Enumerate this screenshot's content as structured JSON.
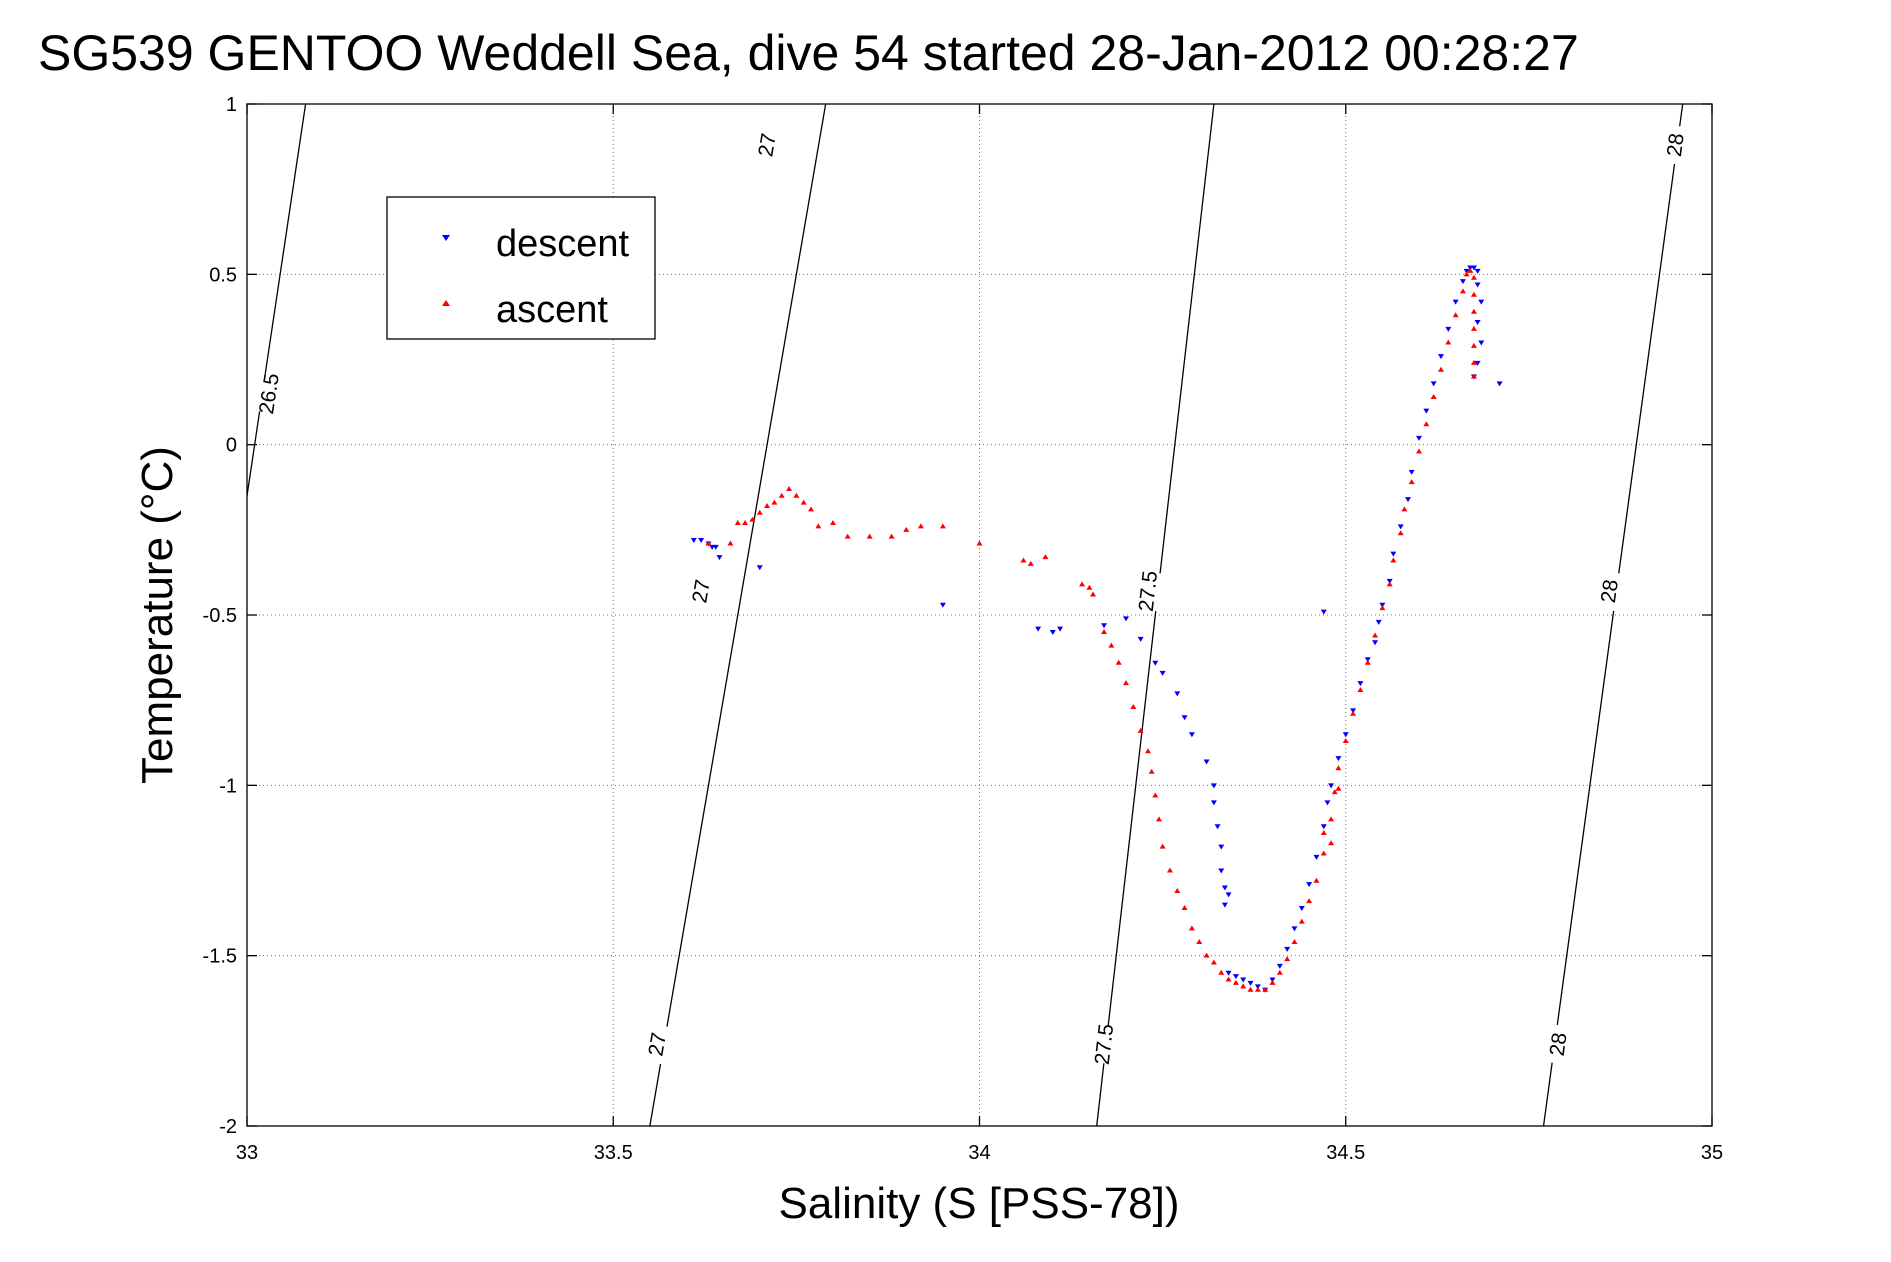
{
  "chart_data": {
    "type": "scatter",
    "title": "SG539 GENTOO Weddell Sea, dive 54 started 28-Jan-2012 00:28:27",
    "xlabel": "Salinity (S [PSS-78])",
    "ylabel": "Temperature (°C)",
    "xlim": [
      33,
      35
    ],
    "ylim": [
      -2,
      1
    ],
    "x_ticks": [
      "33",
      "33.5",
      "34",
      "34.5",
      "35"
    ],
    "y_ticks": [
      "1",
      "0.5",
      "0",
      "-0.5",
      "-1",
      "-1.5",
      "-2"
    ],
    "grid": true,
    "legend_position": "top-left",
    "colors": {
      "descent": "#0000ff",
      "ascent": "#ff0000",
      "contour": "#000000"
    },
    "density_contours": [
      {
        "level": "26.5",
        "points": [
          [
            33.0,
            -0.15
          ],
          [
            33.08,
            1.0
          ]
        ]
      },
      {
        "level": "27",
        "points": [
          [
            33.55,
            -2.0
          ],
          [
            33.79,
            1.0
          ]
        ]
      },
      {
        "level": "27.5",
        "points": [
          [
            34.16,
            -2.0
          ],
          [
            34.32,
            1.0
          ]
        ]
      },
      {
        "level": "28",
        "points": [
          [
            34.77,
            -2.0
          ],
          [
            34.96,
            1.0
          ]
        ]
      }
    ],
    "contour_labels": [
      {
        "text": "26.5",
        "x": 33.03,
        "y": 0.15
      },
      {
        "text": "27",
        "x": 33.71,
        "y": 0.88
      },
      {
        "text": "27",
        "x": 33.62,
        "y": -0.43
      },
      {
        "text": "27",
        "x": 33.56,
        "y": -1.76
      },
      {
        "text": "27.5",
        "x": 34.23,
        "y": -0.43
      },
      {
        "text": "27.5",
        "x": 34.17,
        "y": -1.76
      },
      {
        "text": "28",
        "x": 34.95,
        "y": 0.88
      },
      {
        "text": "28",
        "x": 34.86,
        "y": -0.43
      },
      {
        "text": "28",
        "x": 34.79,
        "y": -1.76
      }
    ],
    "series": [
      {
        "name": "descent",
        "marker": "triangle-down",
        "points": [
          [
            33.61,
            -0.28
          ],
          [
            33.62,
            -0.28
          ],
          [
            33.63,
            -0.29
          ],
          [
            33.635,
            -0.3
          ],
          [
            33.645,
            -0.33
          ],
          [
            33.64,
            -0.3
          ],
          [
            33.7,
            -0.36
          ],
          [
            33.95,
            -0.47
          ],
          [
            34.08,
            -0.54
          ],
          [
            34.1,
            -0.55
          ],
          [
            34.11,
            -0.54
          ],
          [
            34.17,
            -0.53
          ],
          [
            34.2,
            -0.51
          ],
          [
            34.22,
            -0.57
          ],
          [
            34.24,
            -0.64
          ],
          [
            34.25,
            -0.67
          ],
          [
            34.27,
            -0.73
          ],
          [
            34.28,
            -0.8
          ],
          [
            34.29,
            -0.85
          ],
          [
            34.31,
            -0.93
          ],
          [
            34.32,
            -1.0
          ],
          [
            34.32,
            -1.05
          ],
          [
            34.325,
            -1.12
          ],
          [
            34.33,
            -1.18
          ],
          [
            34.33,
            -1.25
          ],
          [
            34.335,
            -1.3
          ],
          [
            34.34,
            -1.32
          ],
          [
            34.335,
            -1.35
          ],
          [
            34.34,
            -1.55
          ],
          [
            34.35,
            -1.56
          ],
          [
            34.36,
            -1.57
          ],
          [
            34.37,
            -1.58
          ],
          [
            34.38,
            -1.59
          ],
          [
            34.39,
            -1.6
          ],
          [
            34.4,
            -1.57
          ],
          [
            34.41,
            -1.53
          ],
          [
            34.42,
            -1.48
          ],
          [
            34.43,
            -1.42
          ],
          [
            34.44,
            -1.36
          ],
          [
            34.45,
            -1.29
          ],
          [
            34.46,
            -1.21
          ],
          [
            34.47,
            -1.12
          ],
          [
            34.475,
            -1.05
          ],
          [
            34.48,
            -1.0
          ],
          [
            34.49,
            -0.92
          ],
          [
            34.5,
            -0.85
          ],
          [
            34.51,
            -0.78
          ],
          [
            34.52,
            -0.7
          ],
          [
            34.53,
            -0.63
          ],
          [
            34.54,
            -0.58
          ],
          [
            34.545,
            -0.52
          ],
          [
            34.55,
            -0.47
          ],
          [
            34.56,
            -0.4
          ],
          [
            34.565,
            -0.32
          ],
          [
            34.575,
            -0.24
          ],
          [
            34.585,
            -0.16
          ],
          [
            34.59,
            -0.08
          ],
          [
            34.6,
            0.02
          ],
          [
            34.61,
            0.1
          ],
          [
            34.62,
            0.18
          ],
          [
            34.63,
            0.26
          ],
          [
            34.64,
            0.34
          ],
          [
            34.65,
            0.42
          ],
          [
            34.66,
            0.48
          ],
          [
            34.665,
            0.51
          ],
          [
            34.67,
            0.52
          ],
          [
            34.675,
            0.52
          ],
          [
            34.68,
            0.51
          ],
          [
            34.68,
            0.47
          ],
          [
            34.685,
            0.42
          ],
          [
            34.68,
            0.36
          ],
          [
            34.685,
            0.3
          ],
          [
            34.68,
            0.24
          ],
          [
            34.675,
            0.2
          ],
          [
            34.47,
            -0.49
          ],
          [
            34.71,
            0.18
          ]
        ]
      },
      {
        "name": "ascent",
        "marker": "triangle-up",
        "points": [
          [
            33.63,
            -0.29
          ],
          [
            33.66,
            -0.29
          ],
          [
            33.67,
            -0.23
          ],
          [
            33.68,
            -0.23
          ],
          [
            33.69,
            -0.22
          ],
          [
            33.7,
            -0.2
          ],
          [
            33.71,
            -0.18
          ],
          [
            33.72,
            -0.17
          ],
          [
            33.73,
            -0.15
          ],
          [
            33.74,
            -0.13
          ],
          [
            33.75,
            -0.15
          ],
          [
            33.76,
            -0.17
          ],
          [
            33.77,
            -0.19
          ],
          [
            33.78,
            -0.24
          ],
          [
            33.8,
            -0.23
          ],
          [
            33.82,
            -0.27
          ],
          [
            33.85,
            -0.27
          ],
          [
            33.88,
            -0.27
          ],
          [
            33.9,
            -0.25
          ],
          [
            33.92,
            -0.24
          ],
          [
            33.95,
            -0.24
          ],
          [
            34.0,
            -0.29
          ],
          [
            34.06,
            -0.34
          ],
          [
            34.07,
            -0.35
          ],
          [
            34.09,
            -0.33
          ],
          [
            34.14,
            -0.41
          ],
          [
            34.15,
            -0.42
          ],
          [
            34.155,
            -0.44
          ],
          [
            34.17,
            -0.55
          ],
          [
            34.18,
            -0.59
          ],
          [
            34.19,
            -0.64
          ],
          [
            34.2,
            -0.7
          ],
          [
            34.21,
            -0.77
          ],
          [
            34.22,
            -0.84
          ],
          [
            34.23,
            -0.9
          ],
          [
            34.235,
            -0.96
          ],
          [
            34.24,
            -1.03
          ],
          [
            34.245,
            -1.1
          ],
          [
            34.25,
            -1.18
          ],
          [
            34.26,
            -1.25
          ],
          [
            34.27,
            -1.31
          ],
          [
            34.28,
            -1.36
          ],
          [
            34.29,
            -1.42
          ],
          [
            34.3,
            -1.46
          ],
          [
            34.31,
            -1.5
          ],
          [
            34.32,
            -1.52
          ],
          [
            34.33,
            -1.55
          ],
          [
            34.34,
            -1.57
          ],
          [
            34.35,
            -1.58
          ],
          [
            34.36,
            -1.59
          ],
          [
            34.37,
            -1.6
          ],
          [
            34.38,
            -1.6
          ],
          [
            34.39,
            -1.6
          ],
          [
            34.4,
            -1.58
          ],
          [
            34.41,
            -1.55
          ],
          [
            34.42,
            -1.51
          ],
          [
            34.43,
            -1.46
          ],
          [
            34.44,
            -1.4
          ],
          [
            34.45,
            -1.34
          ],
          [
            34.46,
            -1.28
          ],
          [
            34.47,
            -1.2
          ],
          [
            34.48,
            -1.1
          ],
          [
            34.485,
            -1.02
          ],
          [
            34.49,
            -0.95
          ],
          [
            34.5,
            -0.87
          ],
          [
            34.51,
            -0.79
          ],
          [
            34.52,
            -0.72
          ],
          [
            34.53,
            -0.64
          ],
          [
            34.54,
            -0.56
          ],
          [
            34.55,
            -0.48
          ],
          [
            34.56,
            -0.41
          ],
          [
            34.565,
            -0.34
          ],
          [
            34.575,
            -0.26
          ],
          [
            34.58,
            -0.19
          ],
          [
            34.59,
            -0.11
          ],
          [
            34.6,
            -0.02
          ],
          [
            34.61,
            0.06
          ],
          [
            34.62,
            0.14
          ],
          [
            34.63,
            0.22
          ],
          [
            34.64,
            0.3
          ],
          [
            34.65,
            0.38
          ],
          [
            34.66,
            0.45
          ],
          [
            34.665,
            0.5
          ],
          [
            34.67,
            0.51
          ],
          [
            34.675,
            0.49
          ],
          [
            34.675,
            0.44
          ],
          [
            34.675,
            0.39
          ],
          [
            34.675,
            0.34
          ],
          [
            34.675,
            0.29
          ],
          [
            34.675,
            0.24
          ],
          [
            34.675,
            0.2
          ],
          [
            34.48,
            -1.17
          ],
          [
            34.47,
            -1.14
          ],
          [
            34.49,
            -1.01
          ]
        ]
      }
    ]
  }
}
